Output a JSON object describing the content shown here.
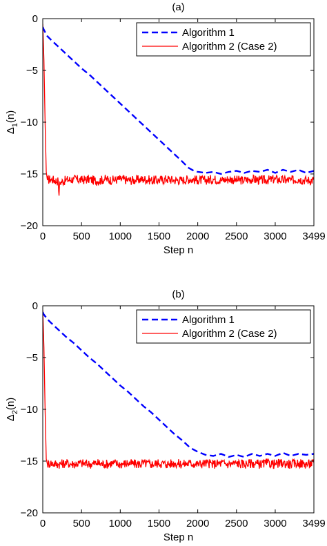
{
  "chart_data": [
    {
      "type": "line",
      "title": "(a)",
      "xlabel": "Step n",
      "ylabel_main": "Δ",
      "ylabel_sub": "1",
      "ylabel_tail": "(n)",
      "xlim": [
        0,
        3499
      ],
      "ylim": [
        -20,
        0
      ],
      "x_ticks": [
        0,
        500,
        1000,
        1500,
        2000,
        2500,
        3000,
        3499
      ],
      "y_ticks": [
        0,
        -5,
        -10,
        -15,
        -20
      ],
      "legend_position": "top-right",
      "series": [
        {
          "name": "Algorithm 1",
          "color": "#0000ff",
          "style": "dashed",
          "x": [
            0,
            10,
            30,
            60,
            100,
            200,
            300,
            400,
            500,
            600,
            700,
            800,
            900,
            1000,
            1100,
            1200,
            1300,
            1400,
            1500,
            1600,
            1700,
            1800,
            1880,
            1950,
            2000,
            2100,
            2200,
            2300,
            2400,
            2500,
            2600,
            2700,
            2800,
            2900,
            3000,
            3100,
            3200,
            3300,
            3400,
            3499
          ],
          "y": [
            -0.8,
            -1.0,
            -1.3,
            -1.7,
            -2.0,
            -2.7,
            -3.4,
            -4.1,
            -4.8,
            -5.4,
            -6.1,
            -6.8,
            -7.5,
            -8.2,
            -8.9,
            -9.6,
            -10.3,
            -11.0,
            -11.7,
            -12.4,
            -13.1,
            -13.8,
            -14.4,
            -14.7,
            -14.8,
            -14.9,
            -14.8,
            -15.0,
            -14.8,
            -14.7,
            -14.9,
            -14.7,
            -14.8,
            -14.6,
            -14.9,
            -14.6,
            -14.8,
            -14.6,
            -14.9,
            -14.7
          ]
        },
        {
          "name": "Algorithm 2 (Case 2)",
          "color": "#ff0000",
          "style": "solid",
          "x": [
            0,
            15,
            30,
            45,
            60,
            100,
            200,
            210,
            220,
            300,
            400,
            500,
            600,
            700,
            800,
            900,
            1000,
            1100,
            1200,
            1300,
            1400,
            1500,
            1600,
            1700,
            1800,
            1900,
            2000,
            2100,
            2200,
            2300,
            2400,
            2500,
            2600,
            2700,
            2800,
            2900,
            3000,
            3100,
            3200,
            3300,
            3400,
            3499
          ],
          "y": [
            -0.5,
            -4.0,
            -10.0,
            -14.8,
            -15.6,
            -15.5,
            -15.7,
            -17.1,
            -15.8,
            -15.6,
            -15.5,
            -15.6,
            -15.5,
            -15.7,
            -15.5,
            -15.6,
            -15.5,
            -15.6,
            -15.6,
            -15.5,
            -15.6,
            -15.6,
            -15.5,
            -15.6,
            -15.6,
            -15.5,
            -15.6,
            -15.6,
            -15.5,
            -15.6,
            -15.5,
            -15.6,
            -15.6,
            -15.5,
            -15.6,
            -15.6,
            -15.5,
            -15.6,
            -15.6,
            -15.5,
            -15.6,
            -15.6
          ]
        }
      ]
    },
    {
      "type": "line",
      "title": "(b)",
      "xlabel": "Step n",
      "ylabel_main": "Δ",
      "ylabel_sub": "2",
      "ylabel_tail": "(n)",
      "xlim": [
        0,
        3499
      ],
      "ylim": [
        -20,
        0
      ],
      "x_ticks": [
        0,
        500,
        1000,
        1500,
        2000,
        2500,
        3000,
        3499
      ],
      "y_ticks": [
        0,
        -5,
        -10,
        -15,
        -20
      ],
      "legend_position": "top-right",
      "series": [
        {
          "name": "Algorithm 1",
          "color": "#0000ff",
          "style": "dashed",
          "x": [
            0,
            10,
            30,
            60,
            100,
            200,
            300,
            400,
            500,
            600,
            700,
            800,
            900,
            1000,
            1100,
            1200,
            1300,
            1400,
            1500,
            1600,
            1700,
            1800,
            1900,
            2000,
            2100,
            2200,
            2300,
            2400,
            2500,
            2600,
            2700,
            2800,
            2900,
            3000,
            3100,
            3200,
            3300,
            3400,
            3499
          ],
          "y": [
            -0.6,
            -0.8,
            -1.0,
            -1.3,
            -1.6,
            -2.3,
            -3.0,
            -3.6,
            -4.3,
            -5.0,
            -5.6,
            -6.3,
            -7.0,
            -7.7,
            -8.3,
            -9.0,
            -9.7,
            -10.3,
            -11.0,
            -11.7,
            -12.4,
            -13.0,
            -13.7,
            -14.1,
            -14.4,
            -14.5,
            -14.3,
            -14.6,
            -14.4,
            -14.6,
            -14.3,
            -14.5,
            -14.3,
            -14.5,
            -14.2,
            -14.5,
            -14.3,
            -14.4,
            -14.3
          ]
        },
        {
          "name": "Algorithm 2 (Case 2)",
          "color": "#ff0000",
          "style": "solid",
          "x": [
            0,
            15,
            30,
            45,
            60,
            100,
            200,
            300,
            400,
            500,
            600,
            700,
            800,
            900,
            1000,
            1100,
            1200,
            1300,
            1400,
            1500,
            1600,
            1700,
            1800,
            1900,
            2000,
            2100,
            2200,
            2300,
            2400,
            2500,
            2600,
            2700,
            2800,
            2900,
            3000,
            3100,
            3200,
            3300,
            3400,
            3499
          ],
          "y": [
            -0.4,
            -4.0,
            -10.0,
            -14.8,
            -15.3,
            -15.2,
            -15.3,
            -15.2,
            -15.3,
            -15.2,
            -15.3,
            -15.2,
            -15.3,
            -15.2,
            -15.3,
            -15.2,
            -15.3,
            -15.2,
            -15.3,
            -15.2,
            -15.3,
            -15.2,
            -15.3,
            -15.2,
            -15.3,
            -15.2,
            -15.3,
            -15.2,
            -15.3,
            -15.2,
            -15.3,
            -15.2,
            -15.3,
            -15.2,
            -15.3,
            -15.2,
            -15.3,
            -15.2,
            -15.3,
            -15.2
          ]
        }
      ]
    }
  ]
}
